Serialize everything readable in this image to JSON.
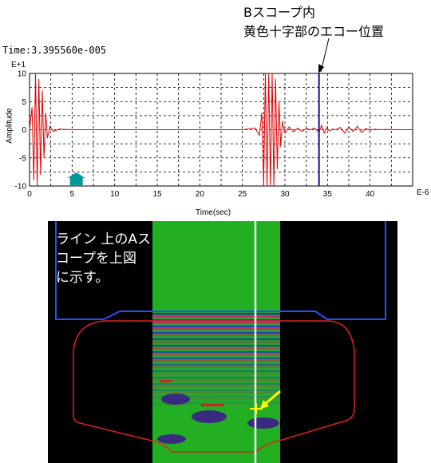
{
  "annotation": {
    "line1": "Bスコープ内",
    "line2": "黄色十字部のエコー位置"
  },
  "ascope": {
    "time_readout": "Time:3.395560e-005",
    "y_exponent": "E+1",
    "x_exponent": "E-6",
    "chart_data": {
      "type": "line",
      "xlabel": "Time(sec)",
      "ylabel": "Amplitude",
      "xlim": [
        0,
        45
      ],
      "ylim": [
        -10,
        10
      ],
      "xticks": [
        0,
        5,
        10,
        15,
        20,
        25,
        30,
        35,
        40
      ],
      "yticks": [
        10,
        5,
        0,
        -5,
        -10
      ],
      "grid": true,
      "cursor_x": 34.0,
      "marker_x": 5.5,
      "series": [
        {
          "color": "#e00000",
          "x": [
            0.0,
            0.3,
            0.5,
            0.7,
            0.9,
            1.1,
            1.3,
            1.5,
            1.7,
            1.9,
            2.1,
            2.4,
            2.8,
            3.5,
            5,
            10,
            15,
            20,
            25,
            26.5,
            27,
            27.3,
            27.5,
            27.7,
            27.9,
            28.1,
            28.3,
            28.5,
            28.7,
            28.9,
            29.1,
            29.3,
            29.5,
            29.7,
            30,
            30.5,
            31,
            31.5,
            32,
            32.5,
            33,
            33.5,
            34,
            34.3,
            34.6,
            34.9,
            35.2,
            35.6,
            36,
            36.5,
            37,
            37.5,
            38,
            38.5,
            39,
            39.5,
            40,
            40.5,
            41,
            42,
            43,
            44,
            45
          ],
          "y": [
            0,
            4,
            -9,
            10,
            -10,
            9,
            -8,
            7,
            -5,
            3,
            -1.5,
            0.6,
            -0.3,
            0.1,
            0,
            0,
            0,
            0,
            0,
            0.3,
            -1,
            3,
            -10,
            10,
            -10,
            10,
            -10,
            10,
            -10,
            9,
            -7,
            5,
            -3,
            1.5,
            -0.6,
            0.5,
            -0.4,
            0.3,
            -0.3,
            0.2,
            0,
            0.3,
            -0.5,
            0.8,
            -0.6,
            0.4,
            -0.2,
            0.1,
            0,
            0.4,
            -0.6,
            0.5,
            -0.3,
            0.6,
            -0.5,
            0.2,
            -0.1,
            0.1,
            0,
            0.05,
            0,
            0,
            0
          ]
        }
      ]
    }
  },
  "bscope": {
    "caption_line1": "ライン 上のAス",
    "caption_line2": "コープを上図",
    "caption_line3": "に示す。"
  },
  "colors": {
    "trace": "#e00000",
    "cursor": "#1010a0",
    "marker": "#009a9a",
    "bscope_bg": "#000000",
    "bscope_scan": "#22b022",
    "outline_blue": "#2050ff",
    "outline_red": "#e02020",
    "pointer_yellow": "#ffff00"
  }
}
